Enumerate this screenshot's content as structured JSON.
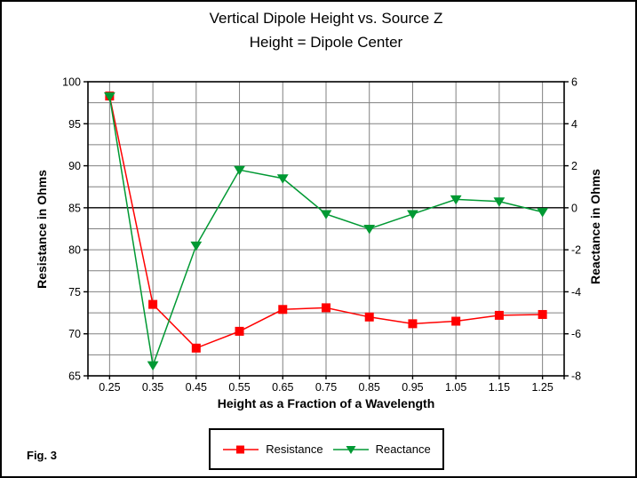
{
  "figure": {
    "title_line1": "Vertical Dipole Height vs. Source Z",
    "title_line2": "Height = Dipole Center",
    "fig_label": "Fig. 3"
  },
  "chart_data": {
    "type": "line",
    "x_labels": [
      "0.25",
      "0.35",
      "0.45",
      "0.55",
      "0.65",
      "0.75",
      "0.85",
      "0.95",
      "1.05",
      "1.15",
      "1.25"
    ],
    "xlabel": "Height as a Fraction of a Wavelength",
    "series": [
      {
        "name": "Resistance",
        "axis": "left",
        "color": "#ff0000",
        "marker": "square",
        "values": [
          98.3,
          73.5,
          68.3,
          70.3,
          72.9,
          73.1,
          72.0,
          71.2,
          71.5,
          72.2,
          72.3
        ]
      },
      {
        "name": "Reactance",
        "axis": "right",
        "color": "#009933",
        "marker": "triangle-down",
        "values": [
          5.3,
          -7.5,
          -1.8,
          1.8,
          1.4,
          -0.3,
          -1.0,
          -0.3,
          0.4,
          0.3,
          -0.2
        ]
      }
    ],
    "left_axis": {
      "label": "Resistance in Ohms",
      "range": [
        65,
        100
      ],
      "ticks": [
        100,
        95,
        90,
        85,
        80,
        75,
        70,
        65
      ]
    },
    "right_axis": {
      "label": "Reactance in Ohms",
      "range": [
        -8,
        6
      ],
      "ticks": [
        6,
        4,
        2,
        0,
        -2,
        -4,
        -6,
        -8
      ],
      "zero_line_black": true
    },
    "grid": {
      "color": "#808080",
      "h_step_right_units": 1,
      "vertical_at_each_category": true
    },
    "legend": {
      "position": "bottom"
    }
  }
}
